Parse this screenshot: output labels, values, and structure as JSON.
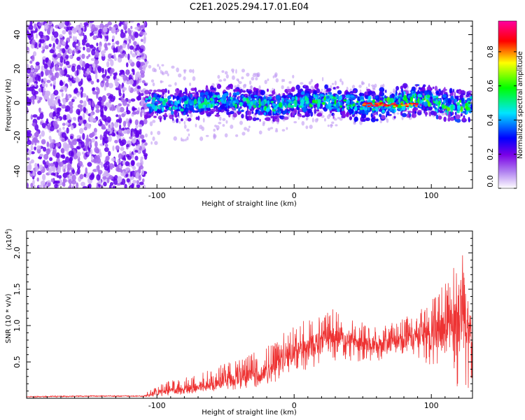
{
  "title": "C2E1.2025.294.17.01.E04",
  "chart_data": [
    {
      "type": "heatmap",
      "title": "C2E1.2025.294.17.01.E04",
      "xlabel": "Height of straight line (km)",
      "ylabel": "Frequency (Hz)",
      "xlim": [
        -195,
        130
      ],
      "ylim": [
        -50,
        48
      ],
      "xticks": [
        -100,
        0,
        100
      ],
      "xtick_labels": [
        "-100",
        "0",
        "100"
      ],
      "yticks": [
        -40,
        -20,
        0,
        20,
        40
      ],
      "ytick_labels": [
        "-40",
        "-20",
        "0",
        "20",
        "40"
      ],
      "colorbar": {
        "label": "Normalized spectral amplitude",
        "range": [
          0.0,
          0.98
        ],
        "ticks": [
          0.0,
          0.2,
          0.4,
          0.6,
          0.8
        ],
        "tick_labels": [
          "0.0",
          "0.2",
          "0.4",
          "0.6",
          "0.8"
        ],
        "colormap": [
          "#ffffff",
          "#7a00e6",
          "#0000ff",
          "#00e5ff",
          "#00ff00",
          "#ffff00",
          "#ff0000",
          "#ff00a0"
        ]
      },
      "regions": [
        {
          "description": "noise",
          "x_range": [
            -195,
            -108
          ],
          "freq_range": [
            -50,
            48
          ],
          "amplitude": 0.15
        },
        {
          "description": "signal band",
          "x_range": [
            -108,
            130
          ],
          "center_freq_hz": 0,
          "bandwidth_hz": 10,
          "peak_amplitude": 0.98
        }
      ]
    },
    {
      "type": "line",
      "xlabel": "Height of straight line (km)",
      "ylabel": "SNR (10 * v/v)",
      "y_multiplier": "(x10",
      "y_multiplier_exp": "4",
      "y_multiplier_close": ")",
      "xlim": [
        -195,
        130
      ],
      "ylim": [
        0,
        2.3
      ],
      "xticks": [
        -100,
        0,
        100
      ],
      "xtick_labels": [
        "-100",
        "0",
        "100"
      ],
      "yticks": [
        0.5,
        1.0,
        1.5,
        2.0
      ],
      "ytick_labels": [
        "0.5",
        "1.0",
        "1.5",
        "2.0"
      ],
      "color": "#ee3333",
      "series": [
        {
          "name": "SNR",
          "x": [
            -195,
            -150,
            -110,
            -100,
            -80,
            -60,
            -40,
            -20,
            -10,
            0,
            10,
            20,
            30,
            40,
            50,
            60,
            70,
            80,
            90,
            100,
            110,
            115,
            120,
            125,
            130
          ],
          "y": [
            0.02,
            0.03,
            0.03,
            0.08,
            0.12,
            0.18,
            0.28,
            0.35,
            0.5,
            0.62,
            0.7,
            0.78,
            0.85,
            0.8,
            0.75,
            0.72,
            0.75,
            0.8,
            0.82,
            0.85,
            0.95,
            1.0,
            1.1,
            1.05,
            1.0
          ],
          "upper": [
            0.03,
            0.04,
            0.04,
            0.2,
            0.3,
            0.42,
            0.55,
            0.7,
            0.9,
            1.0,
            1.1,
            1.15,
            1.25,
            1.1,
            1.05,
            1.0,
            1.05,
            1.1,
            1.2,
            1.35,
            1.6,
            1.75,
            2.25,
            1.75,
            1.5
          ],
          "lower": [
            0.01,
            0.02,
            0.02,
            0.02,
            0.05,
            0.08,
            0.12,
            0.18,
            0.25,
            0.35,
            0.4,
            0.45,
            0.5,
            0.5,
            0.5,
            0.5,
            0.55,
            0.6,
            0.55,
            0.45,
            0.35,
            0.2,
            0.1,
            0.12,
            0.15
          ]
        }
      ]
    }
  ]
}
